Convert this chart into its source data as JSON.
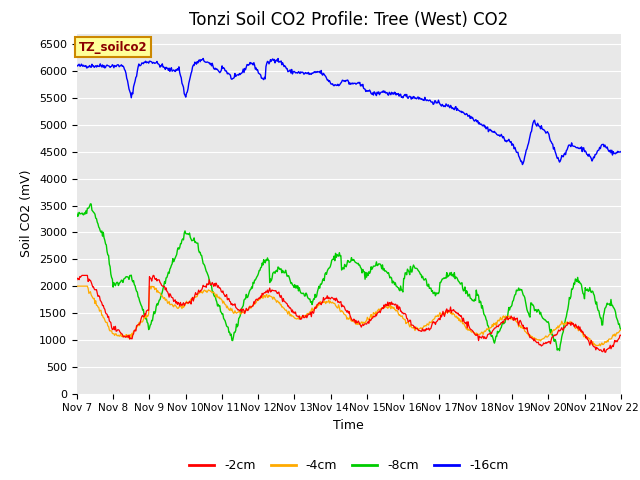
{
  "title": "Tonzi Soil CO2 Profile: Tree (West) CO2",
  "ylabel": "Soil CO2 (mV)",
  "xlabel": "Time",
  "xlim_days": [
    7,
    22
  ],
  "ylim": [
    0,
    6700
  ],
  "yticks": [
    0,
    500,
    1000,
    1500,
    2000,
    2500,
    3000,
    3500,
    4000,
    4500,
    5000,
    5500,
    6000,
    6500
  ],
  "xtick_labels": [
    "Nov 7",
    "Nov 8",
    "Nov 9",
    "Nov 10",
    "Nov 11",
    "Nov 12",
    "Nov 13",
    "Nov 14",
    "Nov 15",
    "Nov 16",
    "Nov 17",
    "Nov 18",
    "Nov 19",
    "Nov 20",
    "Nov 21",
    "Nov 22"
  ],
  "legend_labels": [
    "-2cm",
    "-4cm",
    "-8cm",
    "-16cm"
  ],
  "legend_colors": [
    "#ff0000",
    "#ffaa00",
    "#00cc00",
    "#0000ff"
  ],
  "label_box_color": "#ffff99",
  "label_box_edge": "#cc8800",
  "label_box_text": "TZ_soilco2",
  "bg_color": "#e8e8e8",
  "title_fontsize": 12,
  "axis_fontsize": 9
}
